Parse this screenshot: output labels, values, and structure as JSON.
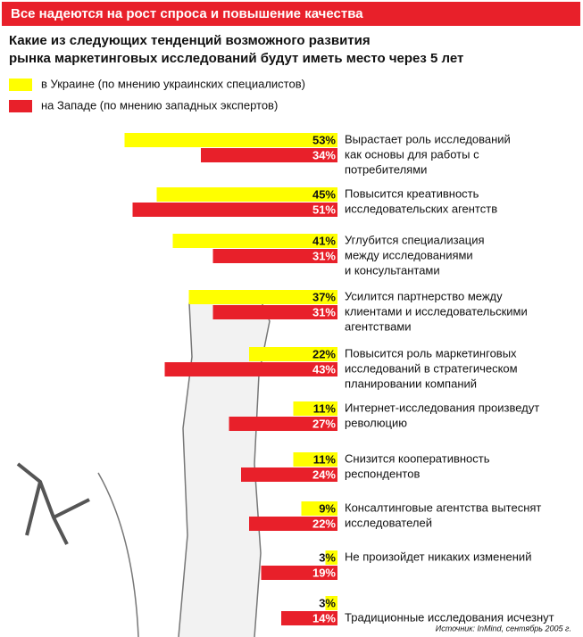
{
  "chart_data": {
    "type": "bar",
    "header": "Все надеются на рост спроса и повышение качества",
    "title": [
      "Какие из следующих тенденций возможного развития",
      "рынка маркетинговых исследований будут иметь место через 5 лет"
    ],
    "categories": [
      [
        "Вырастает роль исследований",
        "как основы для работы с",
        "потребителями"
      ],
      [
        "Повысится креативность",
        "исследовательских агентств"
      ],
      [
        "Углубится специализация",
        "между исследованиями",
        "и консультантами"
      ],
      [
        "Усилится партнерство между",
        "клиентами и исследовательскими",
        "агентствами"
      ],
      [
        "Повысится роль маркетинговых",
        "исследований в стратегическом",
        "планировании компаний"
      ],
      [
        "Интернет-исследования произведут",
        "революцию"
      ],
      [
        "Снизится кооперативность",
        "респондентов"
      ],
      [
        "Консалтинговые агентства вытеснят",
        "исследователей"
      ],
      [
        "Не произойдет никаких изменений"
      ],
      [
        "Традиционные исследования исчезнут"
      ]
    ],
    "series": [
      {
        "name": "в Украине (по мнению украинских специалистов)",
        "color": "#ffff00",
        "values": [
          53,
          45,
          41,
          37,
          22,
          11,
          11,
          9,
          3,
          3
        ],
        "value_labels": [
          "53%",
          "45%",
          "41%",
          "37%",
          "22%",
          "11%",
          "11%",
          "9%",
          "3%",
          "3%"
        ]
      },
      {
        "name": "на Западе (по мнению западных экспертов)",
        "color": "#e8202a",
        "values": [
          34,
          51,
          31,
          31,
          43,
          27,
          24,
          22,
          19,
          14
        ],
        "value_labels": [
          "34%",
          "51%",
          "31%",
          "31%",
          "43%",
          "27%",
          "24%",
          "22%",
          "19%",
          "14%"
        ]
      }
    ],
    "source": "Источник: InMind, сентябрь 2005 г."
  }
}
